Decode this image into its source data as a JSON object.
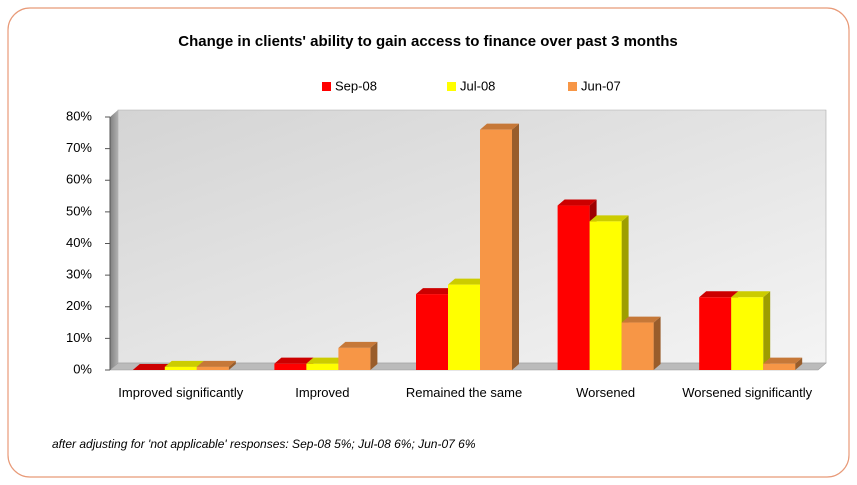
{
  "chart_data": {
    "type": "bar",
    "title": "Change in clients' ability to gain access to finance over past 3 months",
    "categories": [
      "Improved significantly",
      "Improved",
      "Remained the same",
      "Worsened",
      "Worsened significantly"
    ],
    "series": [
      {
        "name": "Sep-08",
        "color": "#ff0000",
        "values": [
          0,
          2,
          24,
          52,
          23
        ]
      },
      {
        "name": "Jul-08",
        "color": "#ffff00",
        "values": [
          1,
          2,
          27,
          47,
          23
        ]
      },
      {
        "name": "Jun-07",
        "color": "#f79646",
        "values": [
          1,
          7,
          76,
          15,
          2
        ]
      }
    ],
    "ylim": [
      0,
      80
    ],
    "yticks": [
      {
        "value": 0,
        "label": "0%"
      },
      {
        "value": 10,
        "label": "10%"
      },
      {
        "value": 20,
        "label": "20%"
      },
      {
        "value": 30,
        "label": "30%"
      },
      {
        "value": 40,
        "label": "40%"
      },
      {
        "value": 50,
        "label": "50%"
      },
      {
        "value": 60,
        "label": "60%"
      },
      {
        "value": 70,
        "label": "70%"
      },
      {
        "value": 80,
        "label": "80%"
      }
    ],
    "grid": false,
    "legend": "top",
    "footnote": "after adjusting for 'not applicable' responses: Sep-08 5%; Jul-08 6%; Jun-07 6%"
  }
}
